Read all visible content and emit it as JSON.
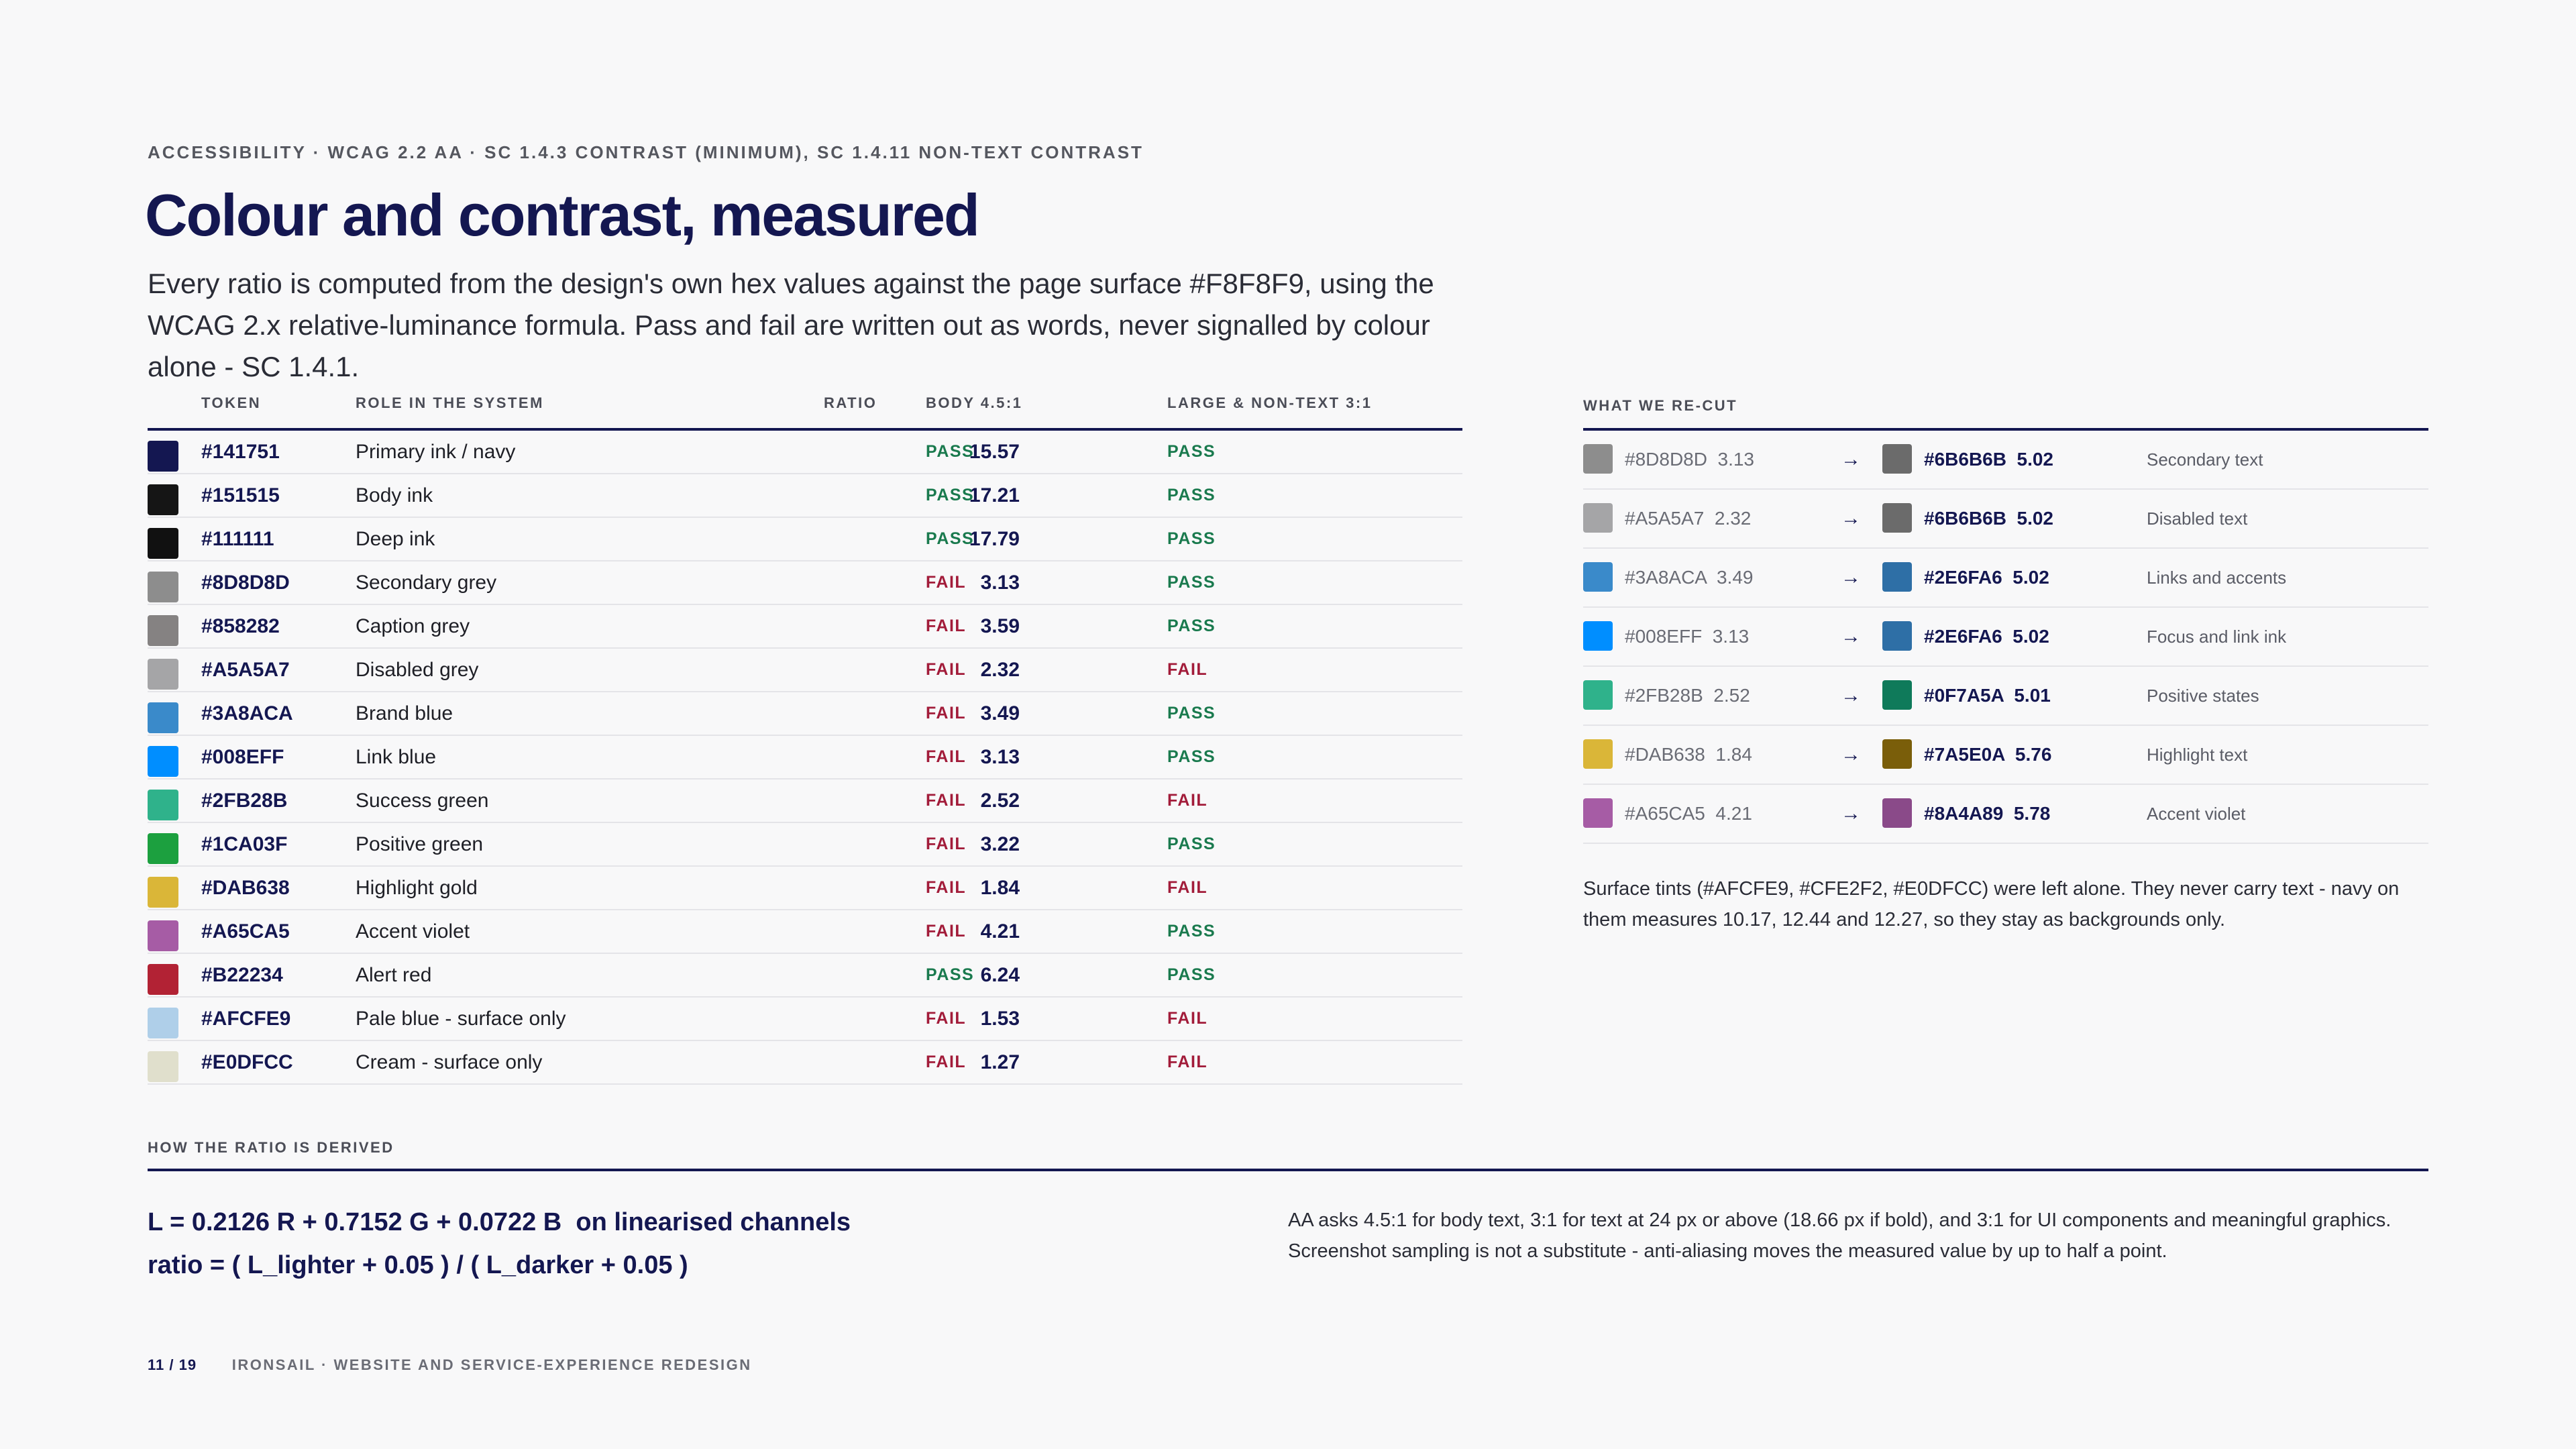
{
  "eyebrow": "ACCESSIBILITY · WCAG 2.2 AA · SC 1.4.3 CONTRAST (MINIMUM), SC 1.4.11 NON-TEXT CONTRAST",
  "title": "Colour and contrast, measured",
  "lede": "Every ratio is computed from the design's own hex values against the page surface #F8F8F9, using the WCAG 2.x relative-luminance formula. Pass and fail are written out as words, never signalled by colour alone - SC 1.4.1.",
  "table": {
    "headers": {
      "token": "TOKEN",
      "role": "ROLE IN THE SYSTEM",
      "ratio": "RATIO",
      "body": "BODY 4.5:1",
      "large": "LARGE & NON-TEXT 3:1"
    },
    "rows": [
      {
        "swatch": "#141751",
        "token": "#141751",
        "role": "Primary ink / navy",
        "ratio": "15.57",
        "body": "PASS",
        "large": "PASS"
      },
      {
        "swatch": "#151515",
        "token": "#151515",
        "role": "Body ink",
        "ratio": "17.21",
        "body": "PASS",
        "large": "PASS"
      },
      {
        "swatch": "#111111",
        "token": "#111111",
        "role": "Deep ink",
        "ratio": "17.79",
        "body": "PASS",
        "large": "PASS"
      },
      {
        "swatch": "#8D8D8D",
        "token": "#8D8D8D",
        "role": "Secondary grey",
        "ratio": "3.13",
        "body": "FAIL",
        "large": "PASS"
      },
      {
        "swatch": "#858282",
        "token": "#858282",
        "role": "Caption grey",
        "ratio": "3.59",
        "body": "FAIL",
        "large": "PASS"
      },
      {
        "swatch": "#A5A5A7",
        "token": "#A5A5A7",
        "role": "Disabled grey",
        "ratio": "2.32",
        "body": "FAIL",
        "large": "FAIL"
      },
      {
        "swatch": "#3A8ACA",
        "token": "#3A8ACA",
        "role": "Brand blue",
        "ratio": "3.49",
        "body": "FAIL",
        "large": "PASS"
      },
      {
        "swatch": "#008EFF",
        "token": "#008EFF",
        "role": "Link blue",
        "ratio": "3.13",
        "body": "FAIL",
        "large": "PASS"
      },
      {
        "swatch": "#2FB28B",
        "token": "#2FB28B",
        "role": "Success green",
        "ratio": "2.52",
        "body": "FAIL",
        "large": "FAIL"
      },
      {
        "swatch": "#1CA03F",
        "token": "#1CA03F",
        "role": "Positive green",
        "ratio": "3.22",
        "body": "FAIL",
        "large": "PASS"
      },
      {
        "swatch": "#DAB638",
        "token": "#DAB638",
        "role": "Highlight gold",
        "ratio": "1.84",
        "body": "FAIL",
        "large": "FAIL"
      },
      {
        "swatch": "#A65CA5",
        "token": "#A65CA5",
        "role": "Accent violet",
        "ratio": "4.21",
        "body": "FAIL",
        "large": "PASS"
      },
      {
        "swatch": "#B22234",
        "token": "#B22234",
        "role": "Alert red",
        "ratio": "6.24",
        "body": "PASS",
        "large": "PASS"
      },
      {
        "swatch": "#AFCFE9",
        "token": "#AFCFE9",
        "role": "Pale blue - surface only",
        "ratio": "1.53",
        "body": "FAIL",
        "large": "FAIL"
      },
      {
        "swatch": "#E0DFCC",
        "token": "#E0DFCC",
        "role": "Cream - surface only",
        "ratio": "1.27",
        "body": "FAIL",
        "large": "FAIL"
      }
    ]
  },
  "recut": {
    "heading": "WHAT WE RE-CUT",
    "rows": [
      {
        "from_swatch": "#8D8D8D",
        "from": "#8D8D8D  3.13",
        "arrow": "→",
        "to_swatch": "#6B6B6B",
        "to": "#6B6B6B  5.02",
        "use": "Secondary text"
      },
      {
        "from_swatch": "#A5A5A7",
        "from": "#A5A5A7  2.32",
        "arrow": "→",
        "to_swatch": "#6B6B6B",
        "to": "#6B6B6B  5.02",
        "use": "Disabled text"
      },
      {
        "from_swatch": "#3A8ACA",
        "from": "#3A8ACA  3.49",
        "arrow": "→",
        "to_swatch": "#2E6FA6",
        "to": "#2E6FA6  5.02",
        "use": "Links and accents"
      },
      {
        "from_swatch": "#008EFF",
        "from": "#008EFF  3.13",
        "arrow": "→",
        "to_swatch": "#2E6FA6",
        "to": "#2E6FA6  5.02",
        "use": "Focus and link ink"
      },
      {
        "from_swatch": "#2FB28B",
        "from": "#2FB28B  2.52",
        "arrow": "→",
        "to_swatch": "#0F7A5A",
        "to": "#0F7A5A  5.01",
        "use": "Positive states"
      },
      {
        "from_swatch": "#DAB638",
        "from": "#DAB638  1.84",
        "arrow": "→",
        "to_swatch": "#7A5E0A",
        "to": "#7A5E0A  5.76",
        "use": "Highlight text"
      },
      {
        "from_swatch": "#A65CA5",
        "from": "#A65CA5  4.21",
        "arrow": "→",
        "to_swatch": "#8A4A89",
        "to": "#8A4A89  5.78",
        "use": "Accent violet"
      }
    ],
    "note": "Surface tints (#AFCFE9, #CFE2F2, #E0DFCC) were left alone. They never carry text - navy on them measures 10.17, 12.44 and 12.27, so they stay as backgrounds only."
  },
  "derivation": {
    "heading": "HOW THE RATIO IS DERIVED",
    "formula_line1": "L = 0.2126 R + 0.7152 G + 0.0722 B  on linearised channels",
    "formula_line2": "ratio = ( L_lighter + 0.05 ) / ( L_darker + 0.05 )",
    "note": "AA asks 4.5:1 for body text, 3:1 for text at 24 px or above (18.66 px if bold), and 3:1 for UI components and meaningful graphics. Screenshot sampling is not a substitute - anti-aliasing moves the measured value by up to half a point."
  },
  "footer": {
    "page": "11 / 19",
    "label": "IRONSAIL · WEBSITE AND SERVICE-EXPERIENCE REDESIGN"
  },
  "colors": {
    "navy": "#141751",
    "pass": "#1A7A4E",
    "fail": "#A21C3A",
    "surface": "#F8F8F9"
  }
}
